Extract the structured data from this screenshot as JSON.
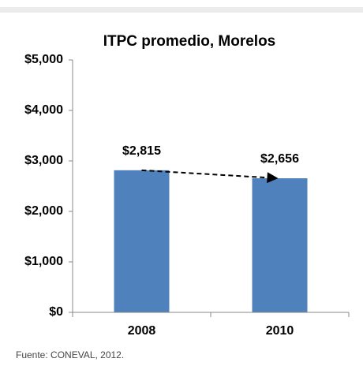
{
  "chart_data": {
    "type": "bar",
    "title": "ITPC promedio, Morelos",
    "categories": [
      "2008",
      "2010"
    ],
    "values": [
      2815,
      2656
    ],
    "value_labels": [
      "$2,815",
      "$2,656"
    ],
    "color": "#4f81bd",
    "ylim": [
      0,
      5000
    ],
    "yticks": [
      {
        "value": 0,
        "label": "$0"
      },
      {
        "value": 1000,
        "label": "$1,000"
      },
      {
        "value": 2000,
        "label": "$2,000"
      },
      {
        "value": 3000,
        "label": "$3,000"
      },
      {
        "value": 4000,
        "label": "$4,000"
      },
      {
        "value": 5000,
        "label": "$5,000"
      }
    ],
    "grid": false,
    "source": "Fuente: CONEVAL, 2012."
  }
}
